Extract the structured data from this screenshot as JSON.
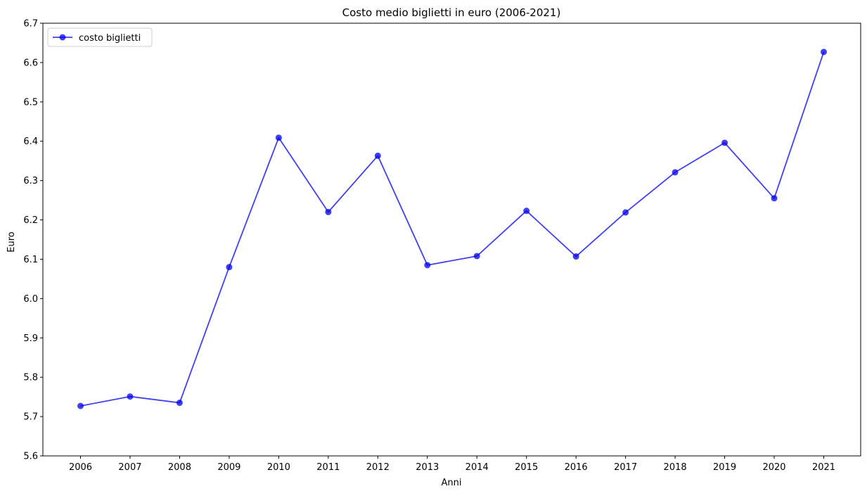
{
  "chart_data": {
    "type": "line",
    "title": "Costo medio biglietti in euro (2006-2021)",
    "xlabel": "Anni",
    "ylabel": "Euro",
    "categories": [
      "2006",
      "2007",
      "2008",
      "2009",
      "2010",
      "2011",
      "2012",
      "2013",
      "2014",
      "2015",
      "2016",
      "2017",
      "2018",
      "2019",
      "2020",
      "2021"
    ],
    "series": [
      {
        "name": "costo biglietti",
        "color": "#0000ee",
        "marker": "circle",
        "values": [
          5.727,
          5.751,
          5.735,
          6.08,
          6.409,
          6.22,
          6.363,
          6.085,
          6.108,
          6.223,
          6.107,
          6.219,
          6.321,
          6.396,
          6.255,
          6.627
        ]
      }
    ],
    "ylim": [
      5.6,
      6.7
    ],
    "yticks": [
      "5.6",
      "5.7",
      "5.8",
      "5.9",
      "6.0",
      "6.1",
      "6.2",
      "6.3",
      "6.4",
      "6.5",
      "6.6",
      "6.7"
    ],
    "grid": false,
    "legend_position": "top-left"
  }
}
